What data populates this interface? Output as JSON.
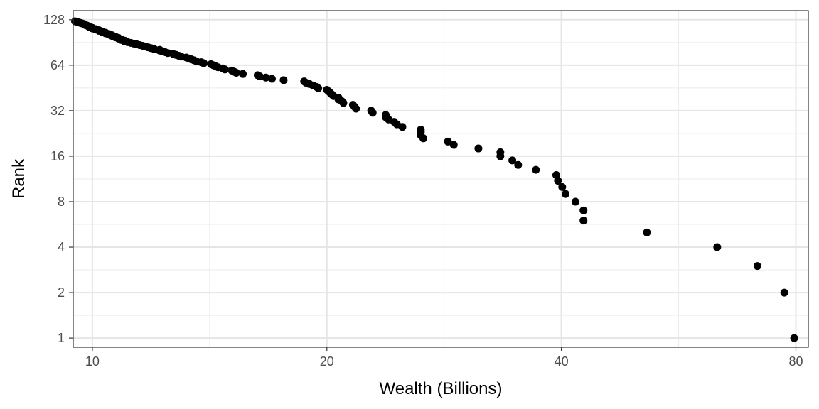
{
  "chart_data": {
    "type": "scatter",
    "title": "",
    "xlabel": "Wealth (Billions)",
    "ylabel": "Rank",
    "x_scale": "log2",
    "y_scale": "log2",
    "xlim": [
      9.45,
      83.0
    ],
    "ylim": [
      0.87,
      147
    ],
    "x_ticks": [
      10,
      20,
      40,
      80
    ],
    "x_tick_labels": [
      "10",
      "20",
      "40",
      "80"
    ],
    "y_ticks": [
      1,
      2,
      4,
      8,
      16,
      32,
      64,
      128
    ],
    "y_tick_labels": [
      "1",
      "2",
      "4",
      "8",
      "16",
      "32",
      "64",
      "128"
    ],
    "grid": true,
    "marker_color": "#000000",
    "points": [
      [
        79.6,
        1
      ],
      [
        77.3,
        2
      ],
      [
        71.4,
        3
      ],
      [
        63.4,
        4
      ],
      [
        51.5,
        5
      ],
      [
        42.7,
        6
      ],
      [
        42.7,
        7
      ],
      [
        41.7,
        8
      ],
      [
        40.5,
        9
      ],
      [
        40.1,
        10
      ],
      [
        39.6,
        11
      ],
      [
        39.4,
        12
      ],
      [
        37.1,
        13
      ],
      [
        35.2,
        14
      ],
      [
        34.6,
        15
      ],
      [
        33.4,
        16
      ],
      [
        33.4,
        17
      ],
      [
        31.3,
        18
      ],
      [
        29.1,
        19
      ],
      [
        28.6,
        20
      ],
      [
        26.6,
        21
      ],
      [
        26.4,
        22
      ],
      [
        26.4,
        23
      ],
      [
        26.4,
        24
      ],
      [
        25.0,
        25
      ],
      [
        24.6,
        26
      ],
      [
        24.4,
        27
      ],
      [
        24.0,
        28
      ],
      [
        23.8,
        29
      ],
      [
        23.8,
        30
      ],
      [
        22.9,
        31
      ],
      [
        22.8,
        32
      ],
      [
        21.8,
        33
      ],
      [
        21.7,
        34
      ],
      [
        21.6,
        35
      ],
      [
        21.0,
        36
      ],
      [
        20.9,
        37
      ],
      [
        20.7,
        38
      ],
      [
        20.7,
        39
      ],
      [
        20.4,
        40
      ],
      [
        20.3,
        41
      ],
      [
        20.2,
        42
      ],
      [
        20.1,
        43
      ],
      [
        20.0,
        44
      ],
      [
        19.5,
        45
      ],
      [
        19.4,
        46
      ],
      [
        19.2,
        47
      ],
      [
        19.0,
        48
      ],
      [
        18.8,
        49
      ],
      [
        18.7,
        50
      ],
      [
        17.6,
        51
      ],
      [
        17.0,
        52
      ],
      [
        16.7,
        53
      ],
      [
        16.4,
        54
      ],
      [
        16.3,
        55
      ],
      [
        15.6,
        56
      ],
      [
        15.3,
        57
      ],
      [
        15.2,
        58
      ],
      [
        15.1,
        59
      ],
      [
        14.8,
        60
      ],
      [
        14.7,
        61
      ],
      [
        14.5,
        62
      ],
      [
        14.4,
        63
      ],
      [
        14.3,
        64
      ],
      [
        14.2,
        65
      ],
      [
        13.9,
        66
      ],
      [
        13.8,
        67
      ],
      [
        13.6,
        68
      ],
      [
        13.5,
        69
      ],
      [
        13.4,
        70
      ],
      [
        13.3,
        71
      ],
      [
        13.2,
        72
      ],
      [
        13.0,
        73
      ],
      [
        12.9,
        74
      ],
      [
        12.8,
        75
      ],
      [
        12.7,
        76
      ],
      [
        12.5,
        77
      ],
      [
        12.4,
        78
      ],
      [
        12.3,
        79
      ],
      [
        12.2,
        80
      ],
      [
        12.2,
        81
      ],
      [
        12.0,
        82
      ],
      [
        11.9,
        83
      ],
      [
        11.8,
        84
      ],
      [
        11.7,
        85
      ],
      [
        11.6,
        86
      ],
      [
        11.5,
        87
      ],
      [
        11.4,
        88
      ],
      [
        11.3,
        89
      ],
      [
        11.2,
        90
      ],
      [
        11.1,
        91
      ],
      [
        11.0,
        92
      ],
      [
        11.0,
        93
      ],
      [
        10.9,
        94
      ],
      [
        10.9,
        95
      ],
      [
        10.8,
        96
      ],
      [
        10.8,
        97
      ],
      [
        10.7,
        98
      ],
      [
        10.7,
        99
      ],
      [
        10.6,
        100
      ],
      [
        10.6,
        101
      ],
      [
        10.5,
        102
      ],
      [
        10.5,
        103
      ],
      [
        10.4,
        104
      ],
      [
        10.4,
        105
      ],
      [
        10.3,
        106
      ],
      [
        10.3,
        107
      ],
      [
        10.2,
        108
      ],
      [
        10.2,
        109
      ],
      [
        10.1,
        110
      ],
      [
        10.1,
        111
      ],
      [
        10.0,
        112
      ],
      [
        10.0,
        113
      ],
      [
        9.95,
        114
      ],
      [
        9.9,
        115
      ],
      [
        9.88,
        116
      ],
      [
        9.85,
        117
      ],
      [
        9.8,
        118
      ],
      [
        9.78,
        119
      ],
      [
        9.75,
        120
      ],
      [
        9.7,
        121
      ],
      [
        9.65,
        122
      ],
      [
        9.6,
        123
      ],
      [
        9.55,
        124
      ],
      [
        9.5,
        125
      ]
    ]
  }
}
